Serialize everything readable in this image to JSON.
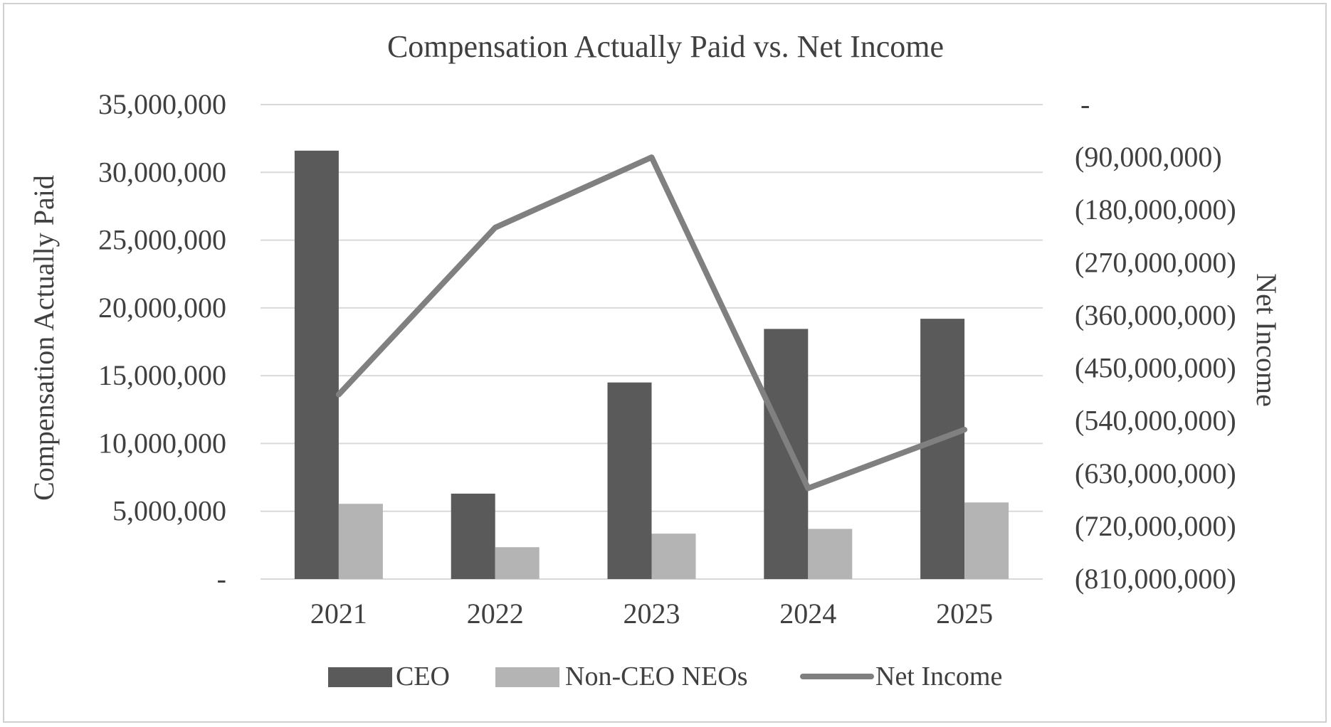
{
  "chart_data": {
    "type": "bar",
    "title": "Compensation Actually Paid vs. Net Income",
    "categories": [
      "2021",
      "2022",
      "2023",
      "2024",
      "2025"
    ],
    "ylabel": "Compensation Actually Paid",
    "y2label": "Net Income",
    "ylim": [
      0,
      35000000
    ],
    "y2lim": [
      -810000000,
      0
    ],
    "yticks": [
      0,
      5000000,
      10000000,
      15000000,
      20000000,
      25000000,
      30000000,
      35000000
    ],
    "ytick_labels": [
      "-",
      "5,000,000",
      "10,000,000",
      "15,000,000",
      "20,000,000",
      "25,000,000",
      "30,000,000",
      "35,000,000"
    ],
    "y2ticks": [
      -810000000,
      -720000000,
      -630000000,
      -540000000,
      -450000000,
      -360000000,
      -270000000,
      -180000000,
      -90000000,
      0
    ],
    "y2tick_labels": [
      "(810,000,000)",
      "(720,000,000)",
      "(630,000,000)",
      "(540,000,000)",
      "(450,000,000)",
      "(360,000,000)",
      "(270,000,000)",
      "(180,000,000)",
      "(90,000,000)",
      "-"
    ],
    "grid": true,
    "legend_position": "bottom",
    "series": [
      {
        "name": "CEO",
        "kind": "bar",
        "axis": "left",
        "color": "#5a5a5a",
        "values": [
          31600000,
          6300000,
          14500000,
          18450000,
          19200000
        ]
      },
      {
        "name": "Non-CEO NEOs",
        "kind": "bar",
        "axis": "left",
        "color": "#b4b4b4",
        "values": [
          5550000,
          2350000,
          3350000,
          3700000,
          5650000
        ]
      },
      {
        "name": "Net Income",
        "kind": "line",
        "axis": "right",
        "color": "#808080",
        "values": [
          -495000000,
          -210000000,
          -90000000,
          -655000000,
          -555000000
        ]
      }
    ]
  }
}
